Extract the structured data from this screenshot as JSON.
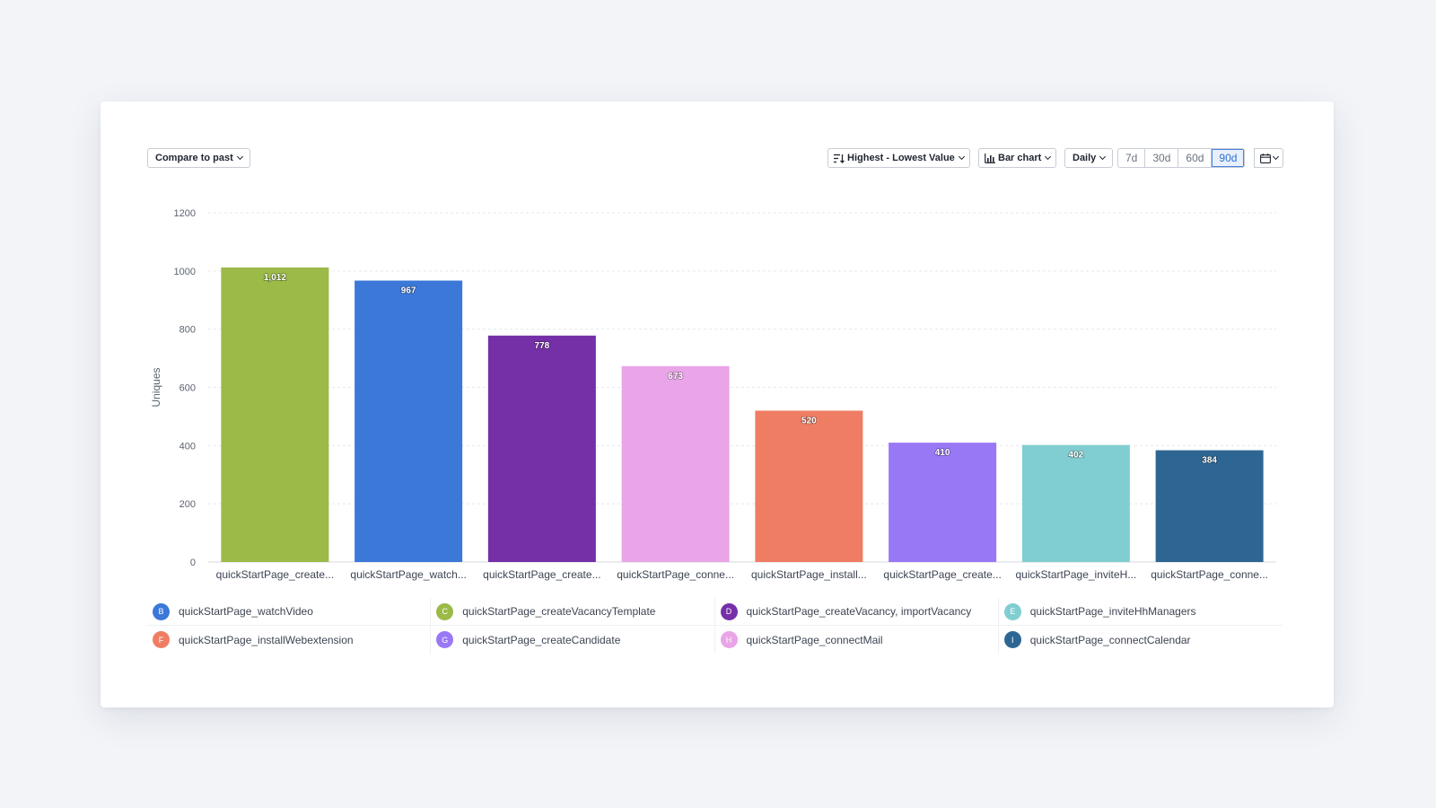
{
  "toolbar": {
    "compare_label": "Compare to past",
    "sort_label": "Highest - Lowest Value",
    "chart_type_label": "Bar chart",
    "interval_label": "Daily",
    "ranges": [
      "7d",
      "30d",
      "60d",
      "90d"
    ],
    "active_range": "90d"
  },
  "icons": {
    "sort": "sort-descending-icon",
    "chart_type": "bar-chart-icon",
    "calendar": "calendar-icon",
    "chevron": "chevron-down-icon"
  },
  "chart_data": {
    "type": "bar",
    "ylabel": "Uniques",
    "xlabel": "",
    "ylim": [
      0,
      1200
    ],
    "yticks": [
      "0",
      "200",
      "400",
      "600",
      "800",
      "1000",
      "1200"
    ],
    "grid": true,
    "categories": [
      "quickStartPage_create...",
      "quickStartPage_watch...",
      "quickStartPage_create...",
      "quickStartPage_conne...",
      "quickStartPage_install...",
      "quickStartPage_create...",
      "quickStartPage_inviteH...",
      "quickStartPage_conne..."
    ],
    "values": [
      1012,
      967,
      778,
      673,
      520,
      410,
      402,
      384
    ],
    "value_labels": [
      "1,012",
      "967",
      "778",
      "673",
      "520",
      "410",
      "402",
      "384"
    ],
    "colors": [
      "#9bba48",
      "#3b78d8",
      "#7530a8",
      "#eaa4e8",
      "#ef7d64",
      "#9978f5",
      "#80ced1",
      "#2d6693"
    ],
    "legend_position": "bottom"
  },
  "legend": [
    {
      "letter": "B",
      "label": "quickStartPage_watchVideo",
      "color": "#3b78d8"
    },
    {
      "letter": "C",
      "label": "quickStartPage_createVacancyTemplate",
      "color": "#9bba48"
    },
    {
      "letter": "D",
      "label": "quickStartPage_createVacancy, importVacancy",
      "color": "#7530a8"
    },
    {
      "letter": "E",
      "label": "quickStartPage_inviteHhManagers",
      "color": "#80ced1"
    },
    {
      "letter": "F",
      "label": "quickStartPage_installWebextension",
      "color": "#ef7d64"
    },
    {
      "letter": "G",
      "label": "quickStartPage_createCandidate",
      "color": "#9978f5"
    },
    {
      "letter": "H",
      "label": "quickStartPage_connectMail",
      "color": "#eaa4e8"
    },
    {
      "letter": "I",
      "label": "quickStartPage_connectCalendar",
      "color": "#2d6693"
    }
  ]
}
